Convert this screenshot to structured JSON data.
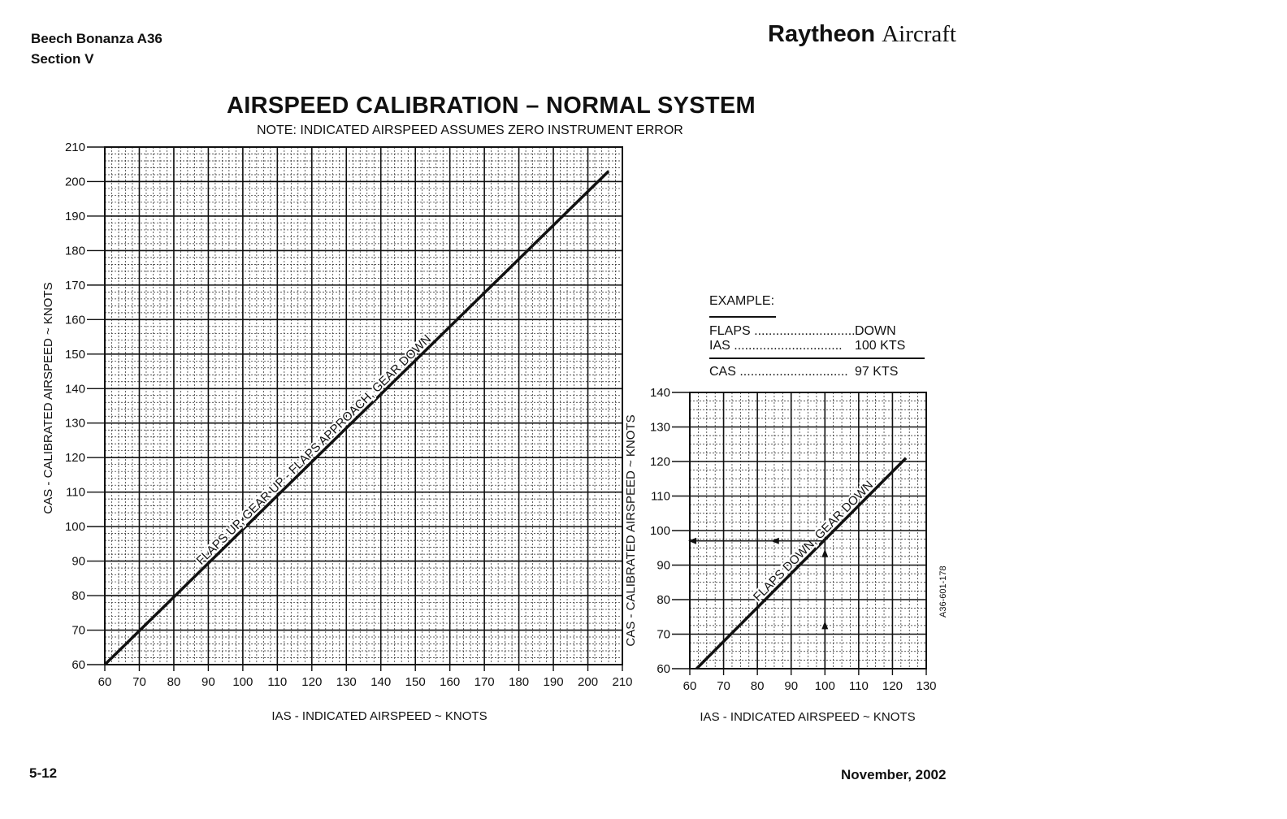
{
  "header": {
    "aircraft": "Beech Bonanza A36",
    "section": "Section V",
    "brand_bold": "Raytheon",
    "brand_rest": "Aircraft"
  },
  "footer": {
    "page": "5-12",
    "date": "November, 2002"
  },
  "example": {
    "heading": "EXAMPLE:",
    "rows": [
      {
        "key": "FLAPS",
        "value": "DOWN"
      },
      {
        "key": "IAS",
        "value": "100 KTS"
      }
    ],
    "result": {
      "key": "CAS",
      "value": "97 KTS"
    }
  },
  "figure_code": "A36-601-178",
  "chart_data": [
    {
      "type": "line",
      "title": "AIRSPEED CALIBRATION – NORMAL SYSTEM",
      "subtitle": "NOTE: INDICATED AIRSPEED ASSUMES ZERO INSTRUMENT ERROR",
      "xlabel": "IAS - INDICATED AIRSPEED ~ KNOTS",
      "ylabel": "CAS - CALIBRATED AIRSPEED ~ KNOTS",
      "xlim": [
        60,
        210
      ],
      "ylim": [
        60,
        210
      ],
      "xticks": [
        60,
        70,
        80,
        90,
        100,
        110,
        120,
        130,
        140,
        150,
        160,
        170,
        180,
        190,
        200,
        210
      ],
      "yticks": [
        60,
        70,
        80,
        90,
        100,
        110,
        120,
        130,
        140,
        150,
        160,
        170,
        180,
        190,
        200,
        210
      ],
      "grid": true,
      "series": [
        {
          "name": "FLAPS UP, GEAR UP - FLAPS APPROACH, GEAR DOWN",
          "x": [
            60,
            206
          ],
          "y": [
            60,
            203
          ]
        }
      ]
    },
    {
      "type": "line",
      "xlabel": "IAS - INDICATED AIRSPEED ~ KNOTS",
      "ylabel": "CAS - CALIBRATED AIRSPEED ~ KNOTS",
      "xlim": [
        60,
        130
      ],
      "ylim": [
        60,
        140
      ],
      "xticks": [
        60,
        70,
        80,
        90,
        100,
        110,
        120,
        130
      ],
      "yticks": [
        60,
        70,
        80,
        90,
        100,
        110,
        120,
        130,
        140
      ],
      "grid": true,
      "series": [
        {
          "name": "FLAPS DOWN, GEAR DOWN",
          "x": [
            62,
            124
          ],
          "y": [
            60,
            121
          ]
        }
      ],
      "example_path": {
        "ias": 100,
        "cas": 97
      }
    }
  ]
}
